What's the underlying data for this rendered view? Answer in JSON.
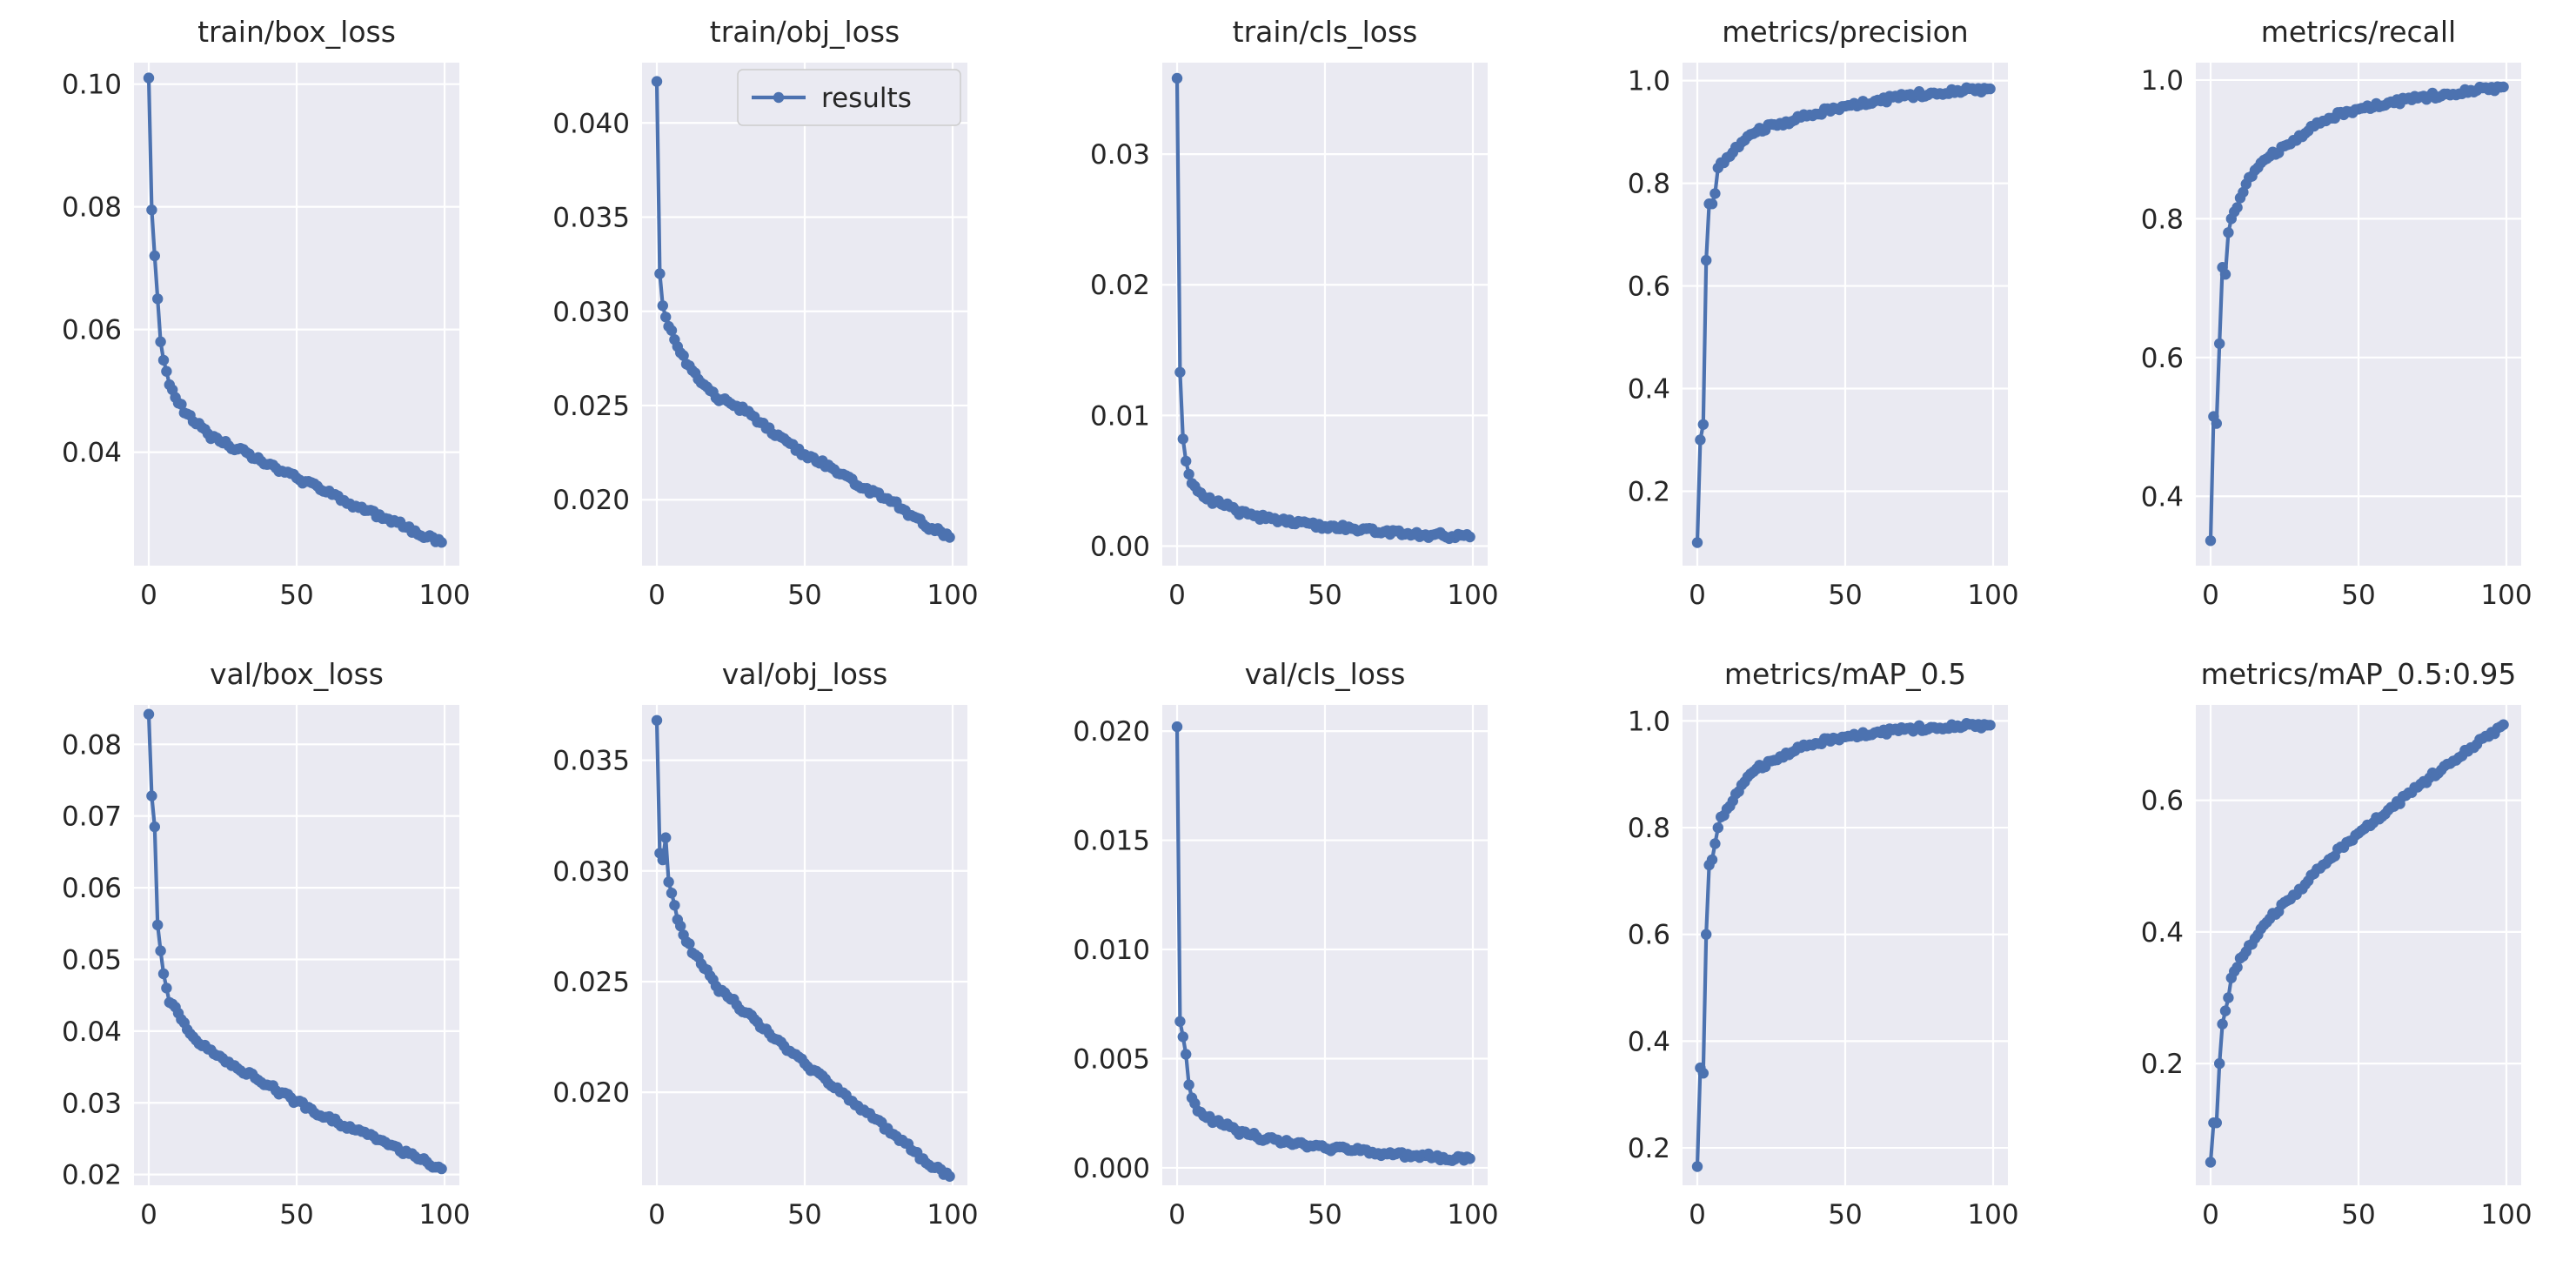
{
  "legend": {
    "label": "results",
    "color": "#4c72b0"
  },
  "colors": {
    "series": "#4c72b0",
    "plot_bg": "#eaeaf2",
    "grid": "#ffffff",
    "text": "#262626"
  },
  "chart_data": [
    {
      "type": "line",
      "title": "train/box_loss",
      "series_name": "results",
      "xlim": [
        -5,
        105
      ],
      "ylim": [
        0.0215,
        0.1035
      ],
      "xticks": [
        0,
        50,
        100
      ],
      "yticks": [
        0.04,
        0.06,
        0.08,
        0.1
      ],
      "ytick_labels": [
        "0.04",
        "0.06",
        "0.08",
        "0.10"
      ],
      "anchors": [
        [
          0,
          0.101
        ],
        [
          1,
          0.0795
        ],
        [
          2,
          0.072
        ],
        [
          3,
          0.065
        ],
        [
          4,
          0.058
        ],
        [
          5,
          0.055
        ],
        [
          7,
          0.051
        ],
        [
          10,
          0.048
        ],
        [
          15,
          0.045
        ],
        [
          20,
          0.043
        ],
        [
          25,
          0.0415
        ],
        [
          30,
          0.0405
        ],
        [
          40,
          0.038
        ],
        [
          50,
          0.0358
        ],
        [
          60,
          0.0335
        ],
        [
          70,
          0.0312
        ],
        [
          80,
          0.0292
        ],
        [
          90,
          0.0272
        ],
        [
          99,
          0.0253
        ]
      ]
    },
    {
      "type": "line",
      "title": "train/obj_loss",
      "series_name": "results",
      "xlim": [
        -5,
        105
      ],
      "ylim": [
        0.0165,
        0.0432
      ],
      "xticks": [
        0,
        50,
        100
      ],
      "yticks": [
        0.02,
        0.025,
        0.03,
        0.035,
        0.04
      ],
      "ytick_labels": [
        "0.020",
        "0.025",
        "0.030",
        "0.035",
        "0.040"
      ],
      "show_legend": true,
      "anchors": [
        [
          0,
          0.0422
        ],
        [
          1,
          0.032
        ],
        [
          2,
          0.0303
        ],
        [
          4,
          0.0292
        ],
        [
          6,
          0.0285
        ],
        [
          8,
          0.0278
        ],
        [
          10,
          0.0272
        ],
        [
          15,
          0.0262
        ],
        [
          20,
          0.0254
        ],
        [
          25,
          0.0251
        ],
        [
          30,
          0.0247
        ],
        [
          40,
          0.0234
        ],
        [
          50,
          0.0224
        ],
        [
          60,
          0.0216
        ],
        [
          70,
          0.0206
        ],
        [
          80,
          0.0199
        ],
        [
          90,
          0.0187
        ],
        [
          96,
          0.0183
        ],
        [
          99,
          0.018
        ]
      ]
    },
    {
      "type": "line",
      "title": "train/cls_loss",
      "series_name": "results",
      "xlim": [
        -5,
        105
      ],
      "ylim": [
        -0.0015,
        0.037
      ],
      "xticks": [
        0,
        50,
        100
      ],
      "yticks": [
        0,
        0.01,
        0.02,
        0.03
      ],
      "ytick_labels": [
        "0.00",
        "0.01",
        "0.02",
        "0.03"
      ],
      "anchors": [
        [
          0,
          0.0358
        ],
        [
          1,
          0.0133
        ],
        [
          2,
          0.0082
        ],
        [
          3,
          0.0065
        ],
        [
          4,
          0.0055
        ],
        [
          5,
          0.0048
        ],
        [
          7,
          0.0042
        ],
        [
          10,
          0.0036
        ],
        [
          15,
          0.0032
        ],
        [
          20,
          0.0027
        ],
        [
          30,
          0.0021
        ],
        [
          40,
          0.0017
        ],
        [
          50,
          0.0015
        ],
        [
          60,
          0.0013
        ],
        [
          70,
          0.0011
        ],
        [
          80,
          0.0009
        ],
        [
          90,
          0.0008
        ],
        [
          99,
          0.0007
        ]
      ]
    },
    {
      "type": "line",
      "title": "metrics/precision",
      "series_name": "results",
      "xlim": [
        -5,
        105
      ],
      "ylim": [
        0.055,
        1.035
      ],
      "xticks": [
        0,
        50,
        100
      ],
      "yticks": [
        0.2,
        0.4,
        0.6,
        0.8,
        1.0
      ],
      "ytick_labels": [
        "0.2",
        "0.4",
        "0.6",
        "0.8",
        "1.0"
      ],
      "anchors": [
        [
          0,
          0.1
        ],
        [
          1,
          0.3
        ],
        [
          2,
          0.33
        ],
        [
          3,
          0.65
        ],
        [
          4,
          0.76
        ],
        [
          5,
          0.76
        ],
        [
          6,
          0.78
        ],
        [
          7,
          0.83
        ],
        [
          8,
          0.84
        ],
        [
          10,
          0.85
        ],
        [
          12,
          0.86
        ],
        [
          15,
          0.88
        ],
        [
          20,
          0.9
        ],
        [
          25,
          0.915
        ],
        [
          30,
          0.92
        ],
        [
          40,
          0.935
        ],
        [
          50,
          0.95
        ],
        [
          60,
          0.96
        ],
        [
          70,
          0.97
        ],
        [
          80,
          0.976
        ],
        [
          90,
          0.98
        ],
        [
          99,
          0.984
        ]
      ]
    },
    {
      "type": "line",
      "title": "metrics/recall",
      "series_name": "results",
      "xlim": [
        -5,
        105
      ],
      "ylim": [
        0.3,
        1.025
      ],
      "xticks": [
        0,
        50,
        100
      ],
      "yticks": [
        0.4,
        0.6,
        0.8,
        1.0
      ],
      "ytick_labels": [
        "0.4",
        "0.6",
        "0.8",
        "1.0"
      ],
      "anchors": [
        [
          0,
          0.336
        ],
        [
          1,
          0.515
        ],
        [
          2,
          0.505
        ],
        [
          3,
          0.62
        ],
        [
          4,
          0.73
        ],
        [
          5,
          0.72
        ],
        [
          6,
          0.78
        ],
        [
          7,
          0.8
        ],
        [
          8,
          0.81
        ],
        [
          10,
          0.83
        ],
        [
          12,
          0.85
        ],
        [
          15,
          0.87
        ],
        [
          20,
          0.89
        ],
        [
          25,
          0.905
        ],
        [
          30,
          0.92
        ],
        [
          40,
          0.945
        ],
        [
          50,
          0.958
        ],
        [
          60,
          0.967
        ],
        [
          70,
          0.974
        ],
        [
          80,
          0.98
        ],
        [
          90,
          0.985
        ],
        [
          99,
          0.99
        ]
      ]
    },
    {
      "type": "line",
      "title": "val/box_loss",
      "series_name": "results",
      "xlim": [
        -5,
        105
      ],
      "ylim": [
        0.0185,
        0.0855
      ],
      "xticks": [
        0,
        50,
        100
      ],
      "yticks": [
        0.02,
        0.03,
        0.04,
        0.05,
        0.06,
        0.07,
        0.08
      ],
      "ytick_labels": [
        "0.02",
        "0.03",
        "0.04",
        "0.05",
        "0.06",
        "0.07",
        "0.08"
      ],
      "anchors": [
        [
          0,
          0.0842
        ],
        [
          1,
          0.0728
        ],
        [
          2,
          0.0685
        ],
        [
          3,
          0.0548
        ],
        [
          4,
          0.0512
        ],
        [
          5,
          0.048
        ],
        [
          6,
          0.046
        ],
        [
          7,
          0.044
        ],
        [
          10,
          0.0425
        ],
        [
          15,
          0.0392
        ],
        [
          20,
          0.0375
        ],
        [
          25,
          0.0362
        ],
        [
          30,
          0.0348
        ],
        [
          40,
          0.0325
        ],
        [
          50,
          0.0302
        ],
        [
          60,
          0.028
        ],
        [
          70,
          0.0262
        ],
        [
          80,
          0.0245
        ],
        [
          90,
          0.0225
        ],
        [
          99,
          0.0208
        ]
      ]
    },
    {
      "type": "line",
      "title": "val/obj_loss",
      "series_name": "results",
      "xlim": [
        -5,
        105
      ],
      "ylim": [
        0.0158,
        0.0375
      ],
      "xticks": [
        0,
        50,
        100
      ],
      "yticks": [
        0.02,
        0.025,
        0.03,
        0.035
      ],
      "ytick_labels": [
        "0.020",
        "0.025",
        "0.030",
        "0.035"
      ],
      "anchors": [
        [
          0,
          0.0368
        ],
        [
          1,
          0.0308
        ],
        [
          2,
          0.0305
        ],
        [
          3,
          0.0315
        ],
        [
          4,
          0.0295
        ],
        [
          5,
          0.029
        ],
        [
          7,
          0.0278
        ],
        [
          10,
          0.0268
        ],
        [
          15,
          0.0258
        ],
        [
          20,
          0.0248
        ],
        [
          25,
          0.0242
        ],
        [
          30,
          0.0236
        ],
        [
          40,
          0.0224
        ],
        [
          50,
          0.0213
        ],
        [
          60,
          0.0202
        ],
        [
          70,
          0.0192
        ],
        [
          80,
          0.0181
        ],
        [
          90,
          0.017
        ],
        [
          99,
          0.0162
        ]
      ]
    },
    {
      "type": "line",
      "title": "val/cls_loss",
      "series_name": "results",
      "xlim": [
        -5,
        105
      ],
      "ylim": [
        -0.0008,
        0.0212
      ],
      "xticks": [
        0,
        50,
        100
      ],
      "yticks": [
        0,
        0.005,
        0.01,
        0.015,
        0.02
      ],
      "ytick_labels": [
        "0.000",
        "0.005",
        "0.010",
        "0.015",
        "0.020"
      ],
      "anchors": [
        [
          0,
          0.0202
        ],
        [
          1,
          0.0067
        ],
        [
          2,
          0.006
        ],
        [
          3,
          0.0052
        ],
        [
          4,
          0.0038
        ],
        [
          5,
          0.0032
        ],
        [
          7,
          0.0026
        ],
        [
          10,
          0.0023
        ],
        [
          15,
          0.002
        ],
        [
          20,
          0.0017
        ],
        [
          25,
          0.0015
        ],
        [
          30,
          0.0013
        ],
        [
          40,
          0.0011
        ],
        [
          50,
          0.0009
        ],
        [
          60,
          0.0008
        ],
        [
          70,
          0.00065
        ],
        [
          80,
          0.00055
        ],
        [
          90,
          0.00048
        ],
        [
          99,
          0.00042
        ]
      ]
    },
    {
      "type": "line",
      "title": "metrics/mAP_0.5",
      "series_name": "results",
      "xlim": [
        -5,
        105
      ],
      "ylim": [
        0.13,
        1.03
      ],
      "xticks": [
        0,
        50,
        100
      ],
      "yticks": [
        0.2,
        0.4,
        0.6,
        0.8,
        1.0
      ],
      "ytick_labels": [
        "0.2",
        "0.4",
        "0.6",
        "0.8",
        "1.0"
      ],
      "anchors": [
        [
          0,
          0.165
        ],
        [
          1,
          0.35
        ],
        [
          2,
          0.34
        ],
        [
          3,
          0.6
        ],
        [
          4,
          0.73
        ],
        [
          5,
          0.74
        ],
        [
          6,
          0.77
        ],
        [
          7,
          0.8
        ],
        [
          8,
          0.82
        ],
        [
          10,
          0.835
        ],
        [
          12,
          0.85
        ],
        [
          15,
          0.88
        ],
        [
          20,
          0.91
        ],
        [
          25,
          0.925
        ],
        [
          30,
          0.94
        ],
        [
          40,
          0.958
        ],
        [
          50,
          0.97
        ],
        [
          60,
          0.978
        ],
        [
          70,
          0.984
        ],
        [
          80,
          0.988
        ],
        [
          90,
          0.99
        ],
        [
          99,
          0.992
        ]
      ]
    },
    {
      "type": "line",
      "title": "metrics/mAP_0.5:0.95",
      "series_name": "results",
      "xlim": [
        -5,
        105
      ],
      "ylim": [
        0.015,
        0.745
      ],
      "xticks": [
        0,
        50,
        100
      ],
      "yticks": [
        0.2,
        0.4,
        0.6
      ],
      "ytick_labels": [
        "0.2",
        "0.4",
        "0.6"
      ],
      "anchors": [
        [
          0,
          0.05
        ],
        [
          1,
          0.11
        ],
        [
          2,
          0.11
        ],
        [
          3,
          0.2
        ],
        [
          4,
          0.26
        ],
        [
          5,
          0.28
        ],
        [
          6,
          0.3
        ],
        [
          7,
          0.33
        ],
        [
          8,
          0.34
        ],
        [
          10,
          0.36
        ],
        [
          12,
          0.37
        ],
        [
          15,
          0.39
        ],
        [
          20,
          0.42
        ],
        [
          25,
          0.445
        ],
        [
          30,
          0.465
        ],
        [
          40,
          0.51
        ],
        [
          50,
          0.55
        ],
        [
          60,
          0.585
        ],
        [
          70,
          0.62
        ],
        [
          80,
          0.655
        ],
        [
          90,
          0.685
        ],
        [
          99,
          0.715
        ]
      ]
    }
  ]
}
